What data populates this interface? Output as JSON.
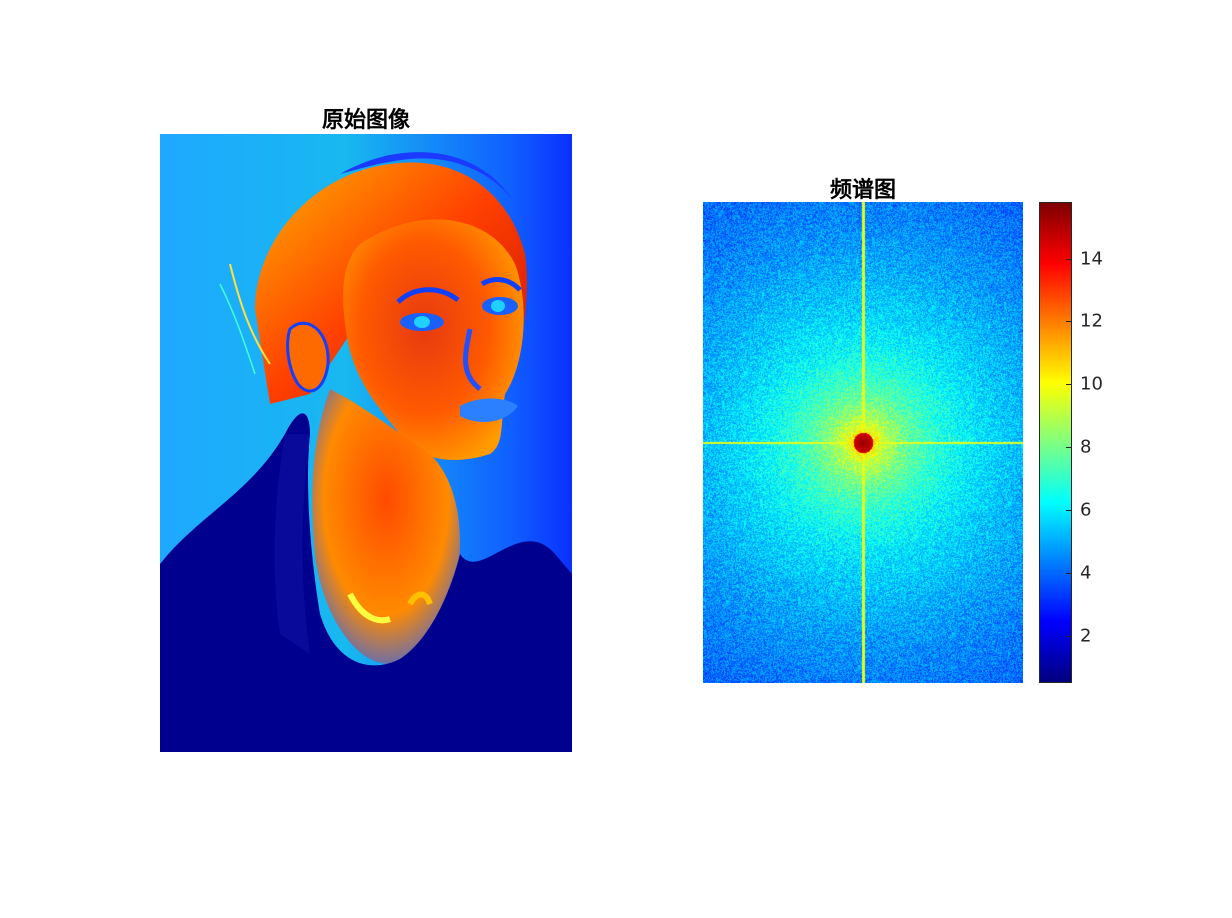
{
  "figure": {
    "left_title": "原始图像",
    "right_title": "频谱图",
    "colormap": "jet",
    "colormap_stops": [
      "#00008f",
      "#0000ff",
      "#00ffff",
      "#ffff00",
      "#ff0000",
      "#800000"
    ]
  },
  "chart_data": [
    {
      "type": "heatmap",
      "title": "原始图像",
      "content": "image displayed with jet colormap (portrait)",
      "colorbar": false
    },
    {
      "type": "heatmap",
      "title": "频谱图",
      "content": "centered log-magnitude Fourier spectrum",
      "colorbar": {
        "range": [
          0.5,
          15.8
        ],
        "ticks": [
          2,
          4,
          6,
          8,
          10,
          12,
          14
        ]
      }
    }
  ]
}
